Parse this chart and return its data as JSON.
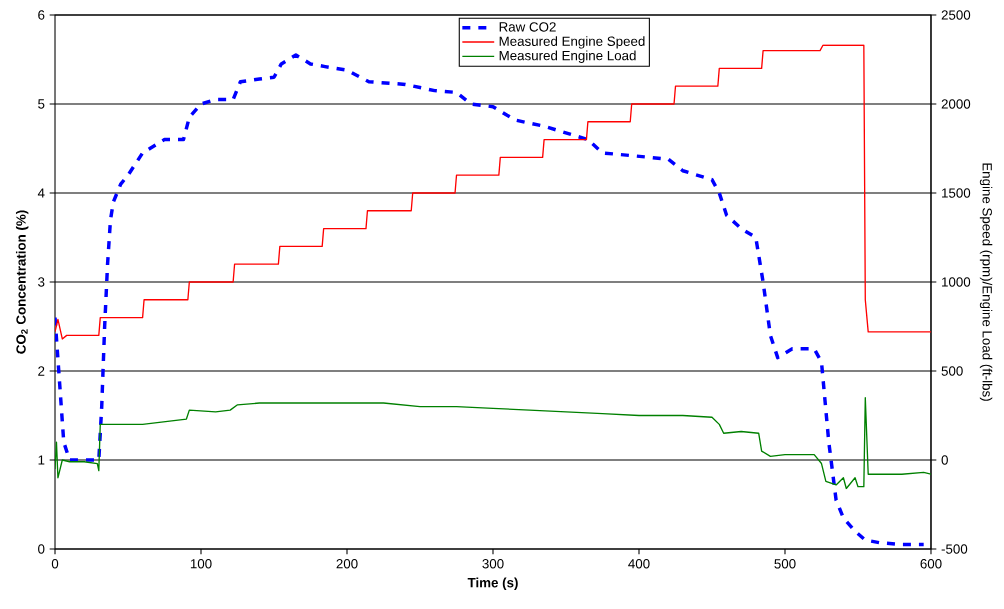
{
  "chart_data": {
    "type": "line",
    "xlabel": "Time (s)",
    "ylabel": "CO$_{2}$ Concentration (%)",
    "y2label": "Engine Speed (rpm)/Engine Load (ft-lbs)",
    "xlim": [
      0,
      600
    ],
    "xticks": [
      0,
      100,
      200,
      300,
      400,
      500,
      600
    ],
    "ylim": [
      0,
      6
    ],
    "yticks": [
      0,
      1,
      2,
      3,
      4,
      5,
      6
    ],
    "y2lim": [
      -500,
      2500
    ],
    "y2ticks": [
      -500,
      0,
      500,
      1000,
      1500,
      2000,
      2500
    ],
    "grid": "y",
    "legend": "top",
    "marker": "none",
    "series": [
      {
        "name": "Raw CO2",
        "color": "#0000ff",
        "line_style": "dashed",
        "x": [
          0,
          3,
          6,
          10,
          20,
          30,
          32,
          34,
          36,
          38,
          40,
          45,
          50,
          60,
          65,
          75,
          88,
          92,
          100,
          110,
          122,
          127,
          140,
          150,
          155,
          165,
          175,
          185,
          200,
          215,
          240,
          260,
          275,
          285,
          300,
          315,
          335,
          355,
          365,
          375,
          395,
          420,
          430,
          450,
          455,
          460,
          470,
          480,
          485,
          490,
          495,
          505,
          520,
          525,
          530,
          535,
          540,
          548,
          555,
          565,
          580,
          595
        ],
        "values": [
          2.6,
          1.9,
          1.2,
          1.0,
          1.0,
          1.0,
          1.6,
          2.5,
          3.2,
          3.7,
          3.9,
          4.1,
          4.2,
          4.45,
          4.5,
          4.6,
          4.6,
          4.85,
          5.0,
          5.05,
          5.05,
          5.25,
          5.28,
          5.3,
          5.45,
          5.55,
          5.45,
          5.42,
          5.38,
          5.25,
          5.22,
          5.15,
          5.13,
          5.0,
          4.97,
          4.82,
          4.75,
          4.65,
          4.6,
          4.45,
          4.42,
          4.38,
          4.25,
          4.15,
          4.0,
          3.75,
          3.6,
          3.5,
          3.0,
          2.4,
          2.15,
          2.25,
          2.25,
          2.1,
          1.2,
          0.55,
          0.35,
          0.2,
          0.1,
          0.07,
          0.05,
          0.05
        ]
      },
      {
        "name": "Measured Engine Speed",
        "color": "#ff0000",
        "line_style": "solid",
        "axis": "y2",
        "x": [
          0,
          2,
          5,
          8,
          30,
          31,
          60,
          61,
          91,
          92,
          122,
          123,
          153,
          154,
          183,
          184,
          213,
          214,
          244,
          245,
          274,
          275,
          304,
          305,
          334,
          335,
          364,
          365,
          394,
          395,
          424,
          425,
          454,
          455,
          484,
          485,
          524,
          526,
          554,
          555,
          557,
          600
        ],
        "values": [
          720,
          790,
          680,
          700,
          700,
          800,
          800,
          900,
          900,
          1000,
          1000,
          1100,
          1100,
          1200,
          1200,
          1300,
          1300,
          1400,
          1400,
          1500,
          1500,
          1600,
          1600,
          1700,
          1700,
          1800,
          1800,
          1900,
          1900,
          2000,
          2000,
          2100,
          2100,
          2200,
          2200,
          2300,
          2300,
          2330,
          2330,
          900,
          720,
          720
        ]
      },
      {
        "name": "Measured Engine Load",
        "color": "#008000",
        "line_style": "solid",
        "axis": "y2",
        "x": [
          0,
          1,
          2,
          5,
          10,
          20,
          29,
          30,
          31,
          40,
          60,
          80,
          90,
          92,
          110,
          120,
          125,
          140,
          150,
          175,
          200,
          225,
          250,
          275,
          300,
          325,
          350,
          375,
          400,
          430,
          450,
          455,
          458,
          470,
          482,
          484,
          490,
          500,
          520,
          525,
          528,
          535,
          540,
          542,
          548,
          550,
          554,
          555,
          557,
          580,
          595,
          600
        ],
        "values": [
          -50,
          100,
          -100,
          0,
          -10,
          -10,
          -20,
          -60,
          200,
          200,
          200,
          220,
          230,
          280,
          270,
          280,
          310,
          320,
          320,
          320,
          320,
          320,
          300,
          300,
          290,
          280,
          270,
          260,
          250,
          250,
          240,
          200,
          150,
          160,
          150,
          50,
          20,
          30,
          30,
          -20,
          -120,
          -140,
          -100,
          -160,
          -100,
          -150,
          -150,
          350,
          -80,
          -80,
          -70,
          -80
        ]
      }
    ]
  }
}
